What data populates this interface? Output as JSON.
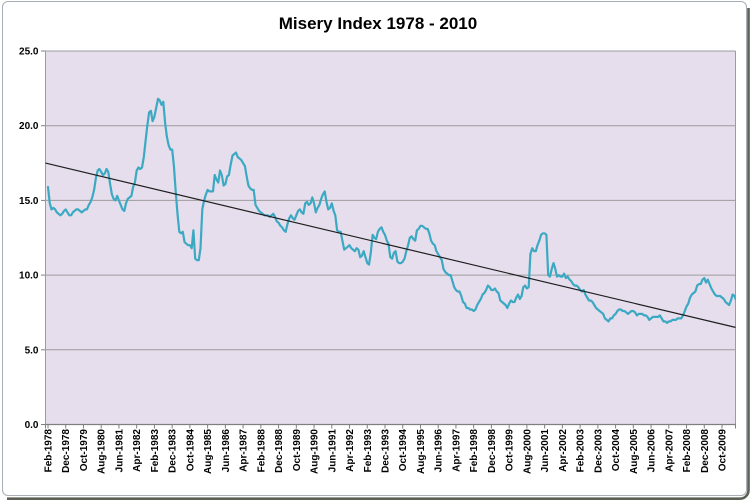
{
  "title": "Misery Index 1978 - 2010",
  "chart_data": {
    "type": "line",
    "title": "Misery Index 1978 - 2010",
    "x_start": "Feb-1978",
    "frequency": "monthly",
    "x_tick_interval_months": 10,
    "x_tick_labels": [
      "Feb-1978",
      "Dec-1978",
      "Oct-1979",
      "Aug-1980",
      "Jun-1981",
      "Apr-1982",
      "Feb-1983",
      "Dec-1983",
      "Oct-1984",
      "Aug-1985",
      "Jun-1986",
      "Apr-1987",
      "Feb-1988",
      "Dec-1988",
      "Oct-1989",
      "Aug-1990",
      "Jun-1991",
      "Apr-1992",
      "Feb-1993",
      "Dec-1993",
      "Oct-1994",
      "Aug-1995",
      "Jun-1996",
      "Apr-1997",
      "Feb-1998",
      "Dec-1998",
      "Oct-1999",
      "Aug-2000",
      "Jun-2001",
      "Apr-2002",
      "Feb-2003",
      "Dec-2003",
      "Oct-2004",
      "Aug-2005",
      "Jun-2006",
      "Apr-2007",
      "Feb-2008",
      "Dec-2008",
      "Oct-2009"
    ],
    "y_tick_labels": [
      "0.0",
      "5.0",
      "10.0",
      "15.0",
      "20.0",
      "25.0"
    ],
    "y_tick_values": [
      0,
      5,
      10,
      15,
      20,
      25
    ],
    "ylim": [
      0,
      25
    ],
    "grid": "horizontal-only",
    "legend": "none",
    "series": [
      {
        "name": "Misery Index",
        "color": "#3CA9C3",
        "values": [
          15.9,
          14.8,
          14.4,
          14.5,
          14.4,
          14.2,
          14.1,
          14.0,
          14.1,
          14.3,
          14.4,
          14.2,
          14.0,
          14.0,
          14.2,
          14.3,
          14.4,
          14.4,
          14.3,
          14.2,
          14.3,
          14.4,
          14.4,
          14.7,
          14.9,
          15.2,
          15.7,
          16.5,
          17.0,
          17.1,
          16.9,
          16.7,
          16.8,
          17.1,
          16.9,
          16.1,
          15.4,
          15.1,
          15.0,
          15.3,
          15.0,
          14.7,
          14.4,
          14.3,
          14.8,
          15.1,
          15.2,
          15.3,
          15.9,
          16.2,
          17.0,
          17.2,
          17.1,
          17.2,
          17.9,
          19.0,
          20.0,
          20.9,
          21.0,
          20.3,
          20.6,
          21.2,
          21.8,
          21.7,
          21.4,
          21.6,
          20.2,
          19.3,
          18.7,
          18.4,
          18.4,
          17.3,
          15.6,
          14.1,
          12.9,
          12.8,
          12.9,
          12.2,
          12.1,
          12.0,
          12.0,
          11.8,
          13.0,
          11.1,
          11.0,
          11.0,
          11.8,
          14.4,
          15.0,
          15.4,
          15.7,
          15.6,
          15.6,
          15.6,
          16.7,
          16.4,
          16.2,
          17.0,
          16.7,
          16.0,
          16.1,
          16.6,
          16.7,
          17.4,
          18.0,
          18.1,
          18.2,
          17.9,
          17.8,
          17.7,
          17.5,
          17.3,
          16.6,
          16.0,
          15.8,
          15.7,
          15.7,
          14.7,
          14.5,
          14.3,
          14.2,
          14.1,
          14.0,
          14.0,
          14.0,
          13.9,
          14.0,
          14.1,
          13.9,
          13.6,
          13.5,
          13.3,
          13.2,
          13.0,
          12.9,
          13.4,
          13.8,
          14.0,
          13.8,
          13.7,
          14.0,
          14.3,
          14.4,
          14.2,
          14.1,
          14.8,
          14.9,
          14.7,
          14.8,
          15.2,
          14.8,
          14.2,
          14.5,
          14.7,
          15.1,
          15.4,
          15.6,
          14.9,
          14.4,
          14.5,
          14.8,
          14.3,
          14.0,
          13.0,
          12.9,
          12.9,
          12.3,
          11.7,
          11.8,
          11.9,
          12.0,
          11.8,
          11.7,
          11.6,
          11.8,
          11.7,
          11.2,
          11.3,
          11.6,
          11.2,
          10.8,
          10.7,
          11.5,
          12.7,
          12.5,
          12.4,
          12.9,
          13.1,
          13.2,
          12.9,
          12.7,
          12.3,
          12.1,
          11.2,
          11.1,
          11.5,
          11.6,
          10.9,
          10.8,
          10.8,
          10.9,
          11.1,
          11.6,
          12.0,
          12.5,
          12.6,
          12.4,
          12.3,
          13.0,
          13.1,
          13.3,
          13.3,
          13.2,
          13.1,
          13.1,
          12.8,
          12.3,
          12.1,
          12.0,
          11.6,
          11.4,
          11.2,
          11.0,
          10.4,
          10.2,
          10.1,
          10.0,
          10.0,
          9.6,
          9.2,
          9.0,
          8.9,
          8.9,
          8.6,
          8.2,
          8.1,
          7.8,
          7.8,
          7.7,
          7.7,
          7.6,
          7.7,
          8.0,
          8.2,
          8.4,
          8.7,
          8.8,
          9.0,
          9.3,
          9.2,
          9.0,
          9.0,
          9.1,
          8.9,
          8.8,
          8.3,
          8.2,
          8.1,
          8.0,
          7.8,
          8.1,
          8.3,
          8.2,
          8.2,
          8.5,
          8.7,
          8.4,
          8.6,
          9.2,
          9.3,
          9.1,
          9.2,
          11.4,
          11.8,
          11.6,
          11.6,
          12.0,
          12.3,
          12.7,
          12.8,
          12.8,
          12.7,
          10.0,
          9.9,
          10.4,
          10.8,
          10.4,
          9.9,
          10.0,
          9.9,
          9.9,
          10.1,
          9.8,
          9.9,
          9.7,
          9.6,
          9.4,
          9.3,
          9.3,
          9.2,
          9.0,
          8.9,
          9.0,
          8.7,
          8.5,
          8.3,
          8.3,
          8.2,
          8.0,
          7.8,
          7.7,
          7.6,
          7.5,
          7.4,
          7.1,
          7.0,
          6.9,
          7.1,
          7.1,
          7.3,
          7.4,
          7.6,
          7.7,
          7.7,
          7.6,
          7.6,
          7.5,
          7.4,
          7.5,
          7.6,
          7.6,
          7.5,
          7.3,
          7.4,
          7.4,
          7.4,
          7.3,
          7.3,
          7.2,
          7.0,
          7.1,
          7.2,
          7.2,
          7.2,
          7.2,
          7.3,
          7.1,
          6.9,
          6.9,
          6.8,
          6.9,
          6.9,
          7.0,
          7.0,
          7.0,
          7.1,
          7.1,
          7.1,
          7.3,
          7.6,
          7.9,
          8.1,
          8.5,
          8.7,
          8.8,
          8.9,
          9.3,
          9.4,
          9.4,
          9.7,
          9.8,
          9.5,
          9.7,
          9.4,
          9.1,
          8.9,
          8.7,
          8.6,
          8.6,
          8.6,
          8.5,
          8.4,
          8.2,
          8.1,
          8.0,
          8.3,
          8.7,
          8.6,
          8.3
        ]
      },
      {
        "name": "Linear Trend",
        "color": "#1f1f1f",
        "trend_start_value": 17.5,
        "trend_end_value": 6.5
      }
    ],
    "colors": {
      "plot_background": "#E6DEED",
      "gridline": "#9c9c9c",
      "axis_line": "#7f7f7f",
      "frame_border": "#a9aeb6",
      "frame_shadow": "#5c6156",
      "text": "#000000"
    }
  }
}
